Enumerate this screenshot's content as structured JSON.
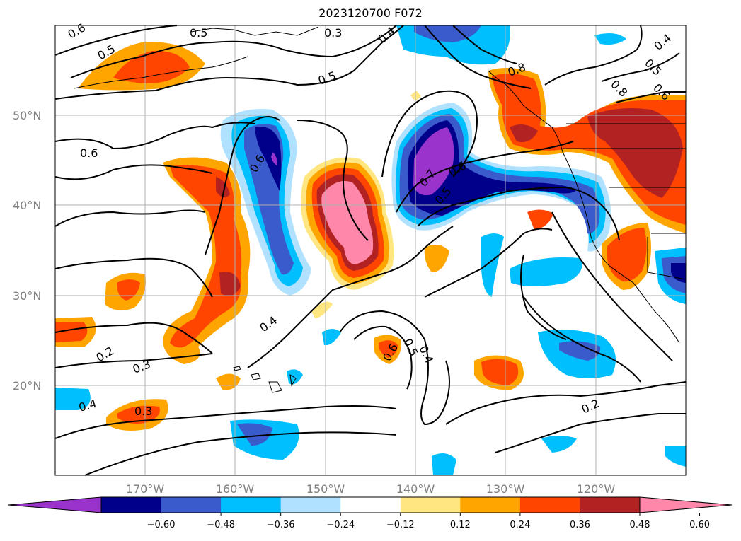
{
  "title": "2023120700 F072",
  "map": {
    "lat_labels": [
      "50°N",
      "40°N",
      "30°N",
      "20°N"
    ],
    "lon_labels": [
      "170°W",
      "160°W",
      "150°W",
      "140°W",
      "130°W",
      "120°W"
    ],
    "contour_labels": [
      "0.6",
      "0.5",
      "0.5",
      "0.3",
      "0.4",
      "0.5",
      "0.8",
      "0.4",
      "0.5",
      "0.8",
      "0.6",
      "0.6",
      "0.6",
      "0.7",
      "0.6",
      "0.5",
      "0.4",
      "0.6",
      "0.5",
      "0.4",
      "0.2",
      "0.3",
      "0.4",
      "0.3",
      "0.2"
    ]
  },
  "colorbar": {
    "tick_labels": [
      "−0.60",
      "−0.48",
      "−0.36",
      "−0.24",
      "−0.12",
      "0.12",
      "0.24",
      "0.36",
      "0.48",
      "0.60"
    ],
    "colors": [
      "#9933cc",
      "#00008b",
      "#3a5bcc",
      "#00bfff",
      "#b0e2ff",
      "#ffffff",
      "#ffe680",
      "#ffa500",
      "#ff4500",
      "#b22222",
      "#ff88aa"
    ]
  }
}
